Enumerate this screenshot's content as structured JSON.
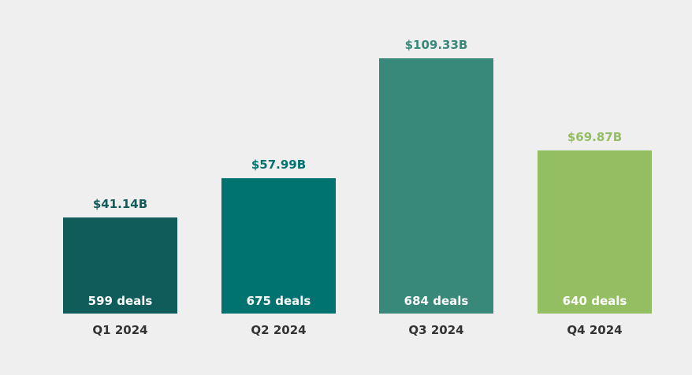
{
  "chart_data": {
    "type": "bar",
    "title": "",
    "xlabel": "",
    "ylabel": "",
    "categories": [
      "Q1 2024",
      "Q2 2024",
      "Q3 2024",
      "Q4 2024"
    ],
    "values": [
      41.14,
      57.99,
      109.33,
      69.87
    ],
    "value_labels": [
      "$41.14B",
      "$57.99B",
      "$109.33B",
      "$69.87B"
    ],
    "deal_labels": [
      "599 deals",
      "675 deals",
      "684 deals",
      "640 deals"
    ],
    "deals": [
      599,
      675,
      684,
      640
    ],
    "colors": [
      "#0f5c5b",
      "#007370",
      "#38897a",
      "#93be62"
    ],
    "ylim": [
      0,
      109.33
    ],
    "grid": false,
    "legend": "none"
  }
}
